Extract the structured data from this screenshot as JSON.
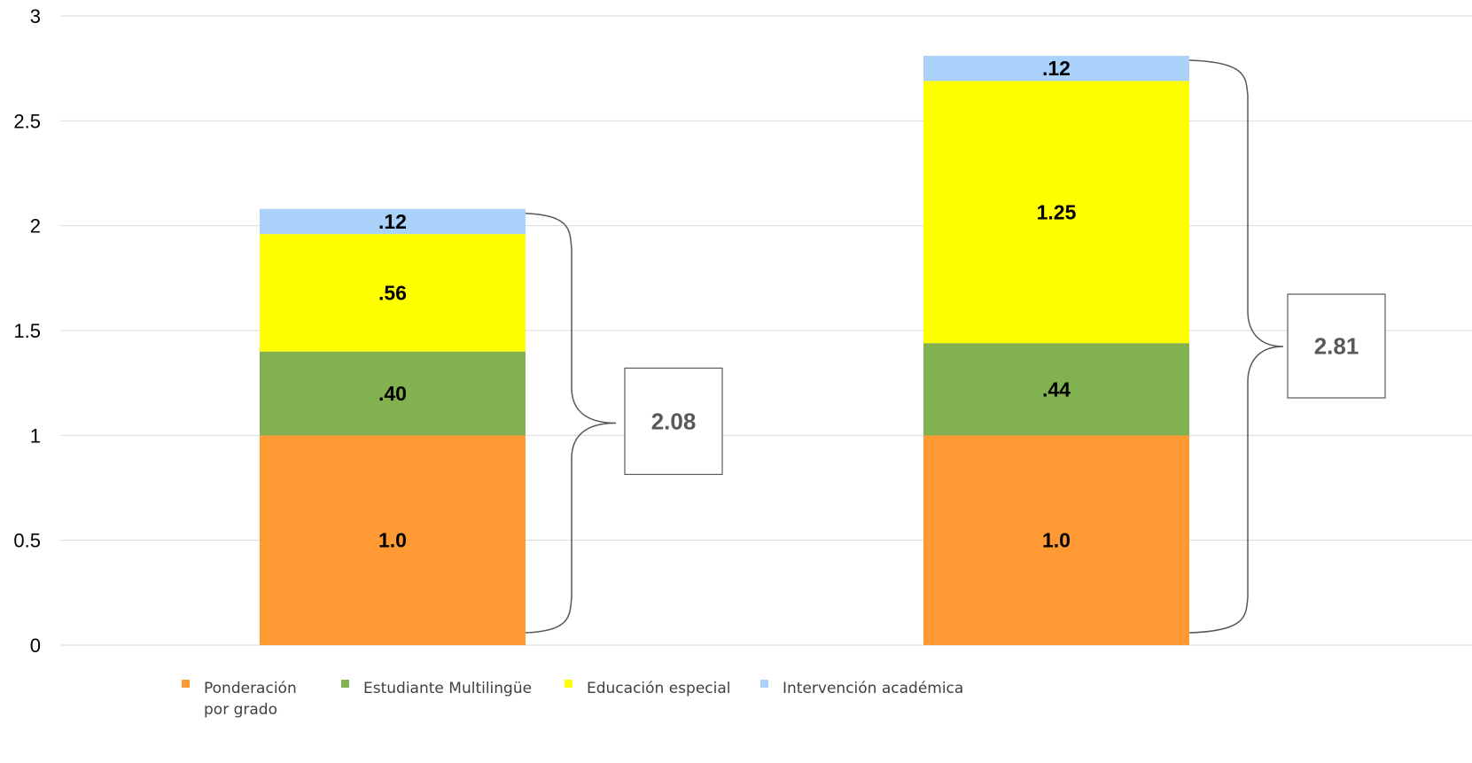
{
  "chart_data": {
    "type": "bar",
    "stacked": true,
    "categories": [
      "",
      ""
    ],
    "ylim": [
      0,
      3
    ],
    "yticks": [
      "0",
      "0.5",
      "1",
      "1.5",
      "2",
      "2.5",
      "3"
    ],
    "ytick_values": [
      0,
      0.5,
      1,
      1.5,
      2,
      2.5,
      3
    ],
    "grid": true,
    "legend_position": "bottom",
    "series": [
      {
        "name": "Ponderación por grado",
        "legend_lines": [
          "Ponderación",
          "por grado"
        ],
        "color": "#FF9933",
        "values": [
          1.0,
          1.0
        ],
        "labels": [
          "1.0",
          "1.0"
        ]
      },
      {
        "name": "Estudiante Multilingüe",
        "legend_lines": [
          "Estudiante Multilingüe"
        ],
        "color": "#82B24F",
        "values": [
          0.4,
          0.44
        ],
        "labels": [
          ".40",
          ".44"
        ]
      },
      {
        "name": "Educación especial",
        "legend_lines": [
          "Educación especial"
        ],
        "color": "#FFFF00",
        "values": [
          0.56,
          1.25
        ],
        "labels": [
          ".56",
          "1.25"
        ]
      },
      {
        "name": "Intervención académica",
        "legend_lines": [
          "Intervención académica"
        ],
        "color": "#A9D1FA",
        "values": [
          0.12,
          0.12
        ],
        "labels": [
          ".12",
          ".12"
        ]
      }
    ],
    "totals": [
      2.08,
      2.81
    ],
    "total_labels": [
      "2.08",
      "2.81"
    ]
  }
}
